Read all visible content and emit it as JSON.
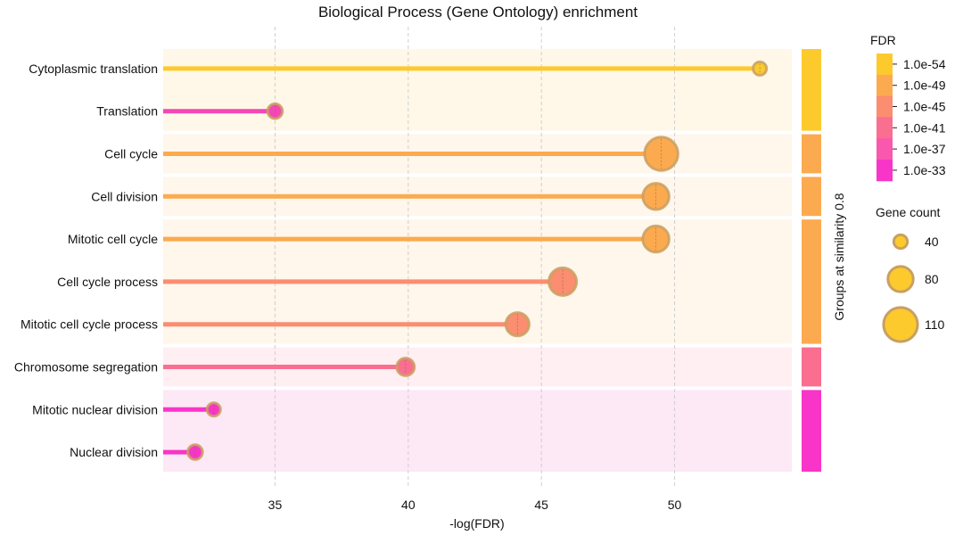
{
  "chart_data": {
    "type": "lollipop",
    "title": "Biological Process (Gene Ontology) enrichment",
    "xlabel": "-log(FDR)",
    "group_axis_label": "Groups at similarity 0.8",
    "xlim": [
      30.8,
      54.4
    ],
    "xticks": [
      "35",
      "40",
      "45",
      "50"
    ],
    "xtick_values": [
      35,
      40,
      45,
      50
    ],
    "grid": "vertical dashed",
    "categories": [
      "Cytoplasmic translation",
      "Translation",
      "Cell cycle",
      "Cell division",
      "Mitotic cell cycle",
      "Cell cycle process",
      "Mitotic cell cycle process",
      "Chromosome segregation",
      "Mitotic nuclear division",
      "Nuclear division"
    ],
    "values": [
      53.2,
      35.0,
      49.5,
      49.3,
      49.3,
      45.8,
      44.1,
      39.9,
      32.7,
      32.0
    ],
    "gene_counts": [
      40,
      45,
      110,
      85,
      85,
      90,
      75,
      55,
      40,
      45
    ],
    "colors": [
      "#fdca2e",
      "#f447b5",
      "#fcaa4f",
      "#fcaa4f",
      "#fcaa4f",
      "#fb8d70",
      "#fb8d70",
      "#fa6e90",
      "#f934c9",
      "#f934c9"
    ],
    "groups": [
      {
        "rows": [
          0,
          1
        ],
        "band_color": "#fff8e8",
        "bar_color": "#fdca2e"
      },
      {
        "rows": [
          2
        ],
        "band_color": "#fff6ec",
        "bar_color": "#fcaa4f"
      },
      {
        "rows": [
          3
        ],
        "band_color": "#fff6ec",
        "bar_color": "#fcaa4f"
      },
      {
        "rows": [
          4,
          5,
          6
        ],
        "band_color": "#fff6ec",
        "bar_color": "#fcaa4f"
      },
      {
        "rows": [
          7
        ],
        "band_color": "#ffeef2",
        "bar_color": "#fa6e90"
      },
      {
        "rows": [
          8,
          9
        ],
        "band_color": "#fde8f6",
        "bar_color": "#f934c9"
      }
    ],
    "fdr_legend": {
      "title": "FDR",
      "labels": [
        "1.0e-54",
        "1.0e-49",
        "1.0e-45",
        "1.0e-41",
        "1.0e-37",
        "1.0e-33"
      ],
      "colors": [
        "#fdca2e",
        "#fcaa4f",
        "#fb8d70",
        "#fa6e90",
        "#f958ae",
        "#f934c9"
      ]
    },
    "count_legend": {
      "title": "Gene count",
      "labels": [
        "40",
        "80",
        "110"
      ],
      "values": [
        40,
        80,
        110
      ],
      "color": "#fdca2e"
    }
  }
}
